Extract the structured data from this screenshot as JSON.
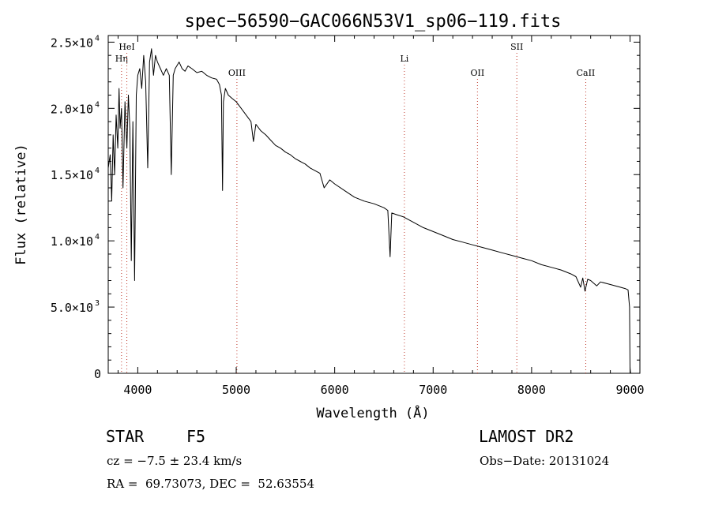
{
  "chart_data": {
    "type": "line",
    "title": "spec−56590−GAC066N53V1_sp06−119.fits",
    "xlabel": "Wavelength (Å)",
    "ylabel": "Flux (relative)",
    "xlim": [
      3700,
      9100
    ],
    "ylim": [
      0,
      25500
    ],
    "x_ticks": [
      4000,
      5000,
      6000,
      7000,
      8000,
      9000
    ],
    "x_tick_labels": [
      "4000",
      "5000",
      "6000",
      "7000",
      "8000",
      "9000"
    ],
    "y_ticks": [
      0,
      5000,
      10000,
      15000,
      20000,
      25000
    ],
    "y_tick_labels": [
      "0",
      "5.0×10",
      "1.0×10",
      "1.5×10",
      "2.0×10",
      "2.5×10"
    ],
    "y_tick_exponents": [
      "",
      "3",
      "4",
      "4",
      "4",
      "4"
    ],
    "series": [
      {
        "name": "spectrum",
        "x": [
          3700,
          3720,
          3735,
          3750,
          3765,
          3780,
          3797,
          3810,
          3820,
          3835,
          3850,
          3870,
          3889,
          3905,
          3920,
          3934,
          3950,
          3968,
          3985,
          4000,
          4020,
          4040,
          4060,
          4080,
          4101,
          4120,
          4140,
          4160,
          4180,
          4200,
          4230,
          4260,
          4290,
          4320,
          4340,
          4360,
          4380,
          4420,
          4450,
          4480,
          4510,
          4550,
          4600,
          4650,
          4700,
          4750,
          4800,
          4830,
          4850,
          4861,
          4870,
          4890,
          4920,
          4950,
          5000,
          5050,
          5100,
          5150,
          5175,
          5200,
          5250,
          5300,
          5350,
          5400,
          5450,
          5500,
          5550,
          5600,
          5650,
          5700,
          5750,
          5800,
          5850,
          5893,
          5950,
          6000,
          6100,
          6200,
          6300,
          6400,
          6500,
          6540,
          6563,
          6580,
          6620,
          6700,
          6800,
          6900,
          7000,
          7100,
          7200,
          7300,
          7400,
          7500,
          7600,
          7700,
          7800,
          7900,
          8000,
          8100,
          8200,
          8300,
          8400,
          8450,
          8498,
          8520,
          8542,
          8570,
          8600,
          8662,
          8700,
          8800,
          8900,
          8950,
          8980,
          8995,
          9000,
          9005
        ],
        "y": [
          15500,
          16500,
          13000,
          18000,
          15000,
          19500,
          17000,
          21500,
          18500,
          20000,
          14000,
          20500,
          17000,
          21000,
          18500,
          8500,
          19000,
          7000,
          21000,
          22500,
          23000,
          21500,
          24000,
          22000,
          15500,
          23500,
          24500,
          22500,
          24000,
          23500,
          23000,
          22500,
          23000,
          22500,
          15000,
          22500,
          23000,
          23500,
          23000,
          22800,
          23200,
          23000,
          22700,
          22800,
          22500,
          22300,
          22200,
          21800,
          21000,
          13800,
          20500,
          21500,
          21000,
          20800,
          20500,
          20000,
          19500,
          19000,
          17500,
          18800,
          18300,
          18000,
          17600,
          17200,
          17000,
          16700,
          16500,
          16200,
          16000,
          15800,
          15500,
          15300,
          15100,
          14000,
          14600,
          14300,
          13800,
          13300,
          13000,
          12800,
          12500,
          12300,
          8800,
          12100,
          12000,
          11800,
          11400,
          11000,
          10700,
          10400,
          10100,
          9900,
          9700,
          9500,
          9300,
          9100,
          8900,
          8700,
          8500,
          8200,
          8000,
          7800,
          7500,
          7300,
          6500,
          7200,
          6200,
          7100,
          7000,
          6600,
          6900,
          6700,
          6500,
          6400,
          6300,
          5000,
          400,
          0
        ]
      }
    ],
    "line_annotations": [
      {
        "label": "Hη",
        "wavelength": 3835,
        "level": 2
      },
      {
        "label": "HeI",
        "wavelength": 3889,
        "level": 1
      },
      {
        "label": "OIII",
        "wavelength": 5007,
        "level": 3
      },
      {
        "label": "Li",
        "wavelength": 6708,
        "level": 2
      },
      {
        "label": "OII",
        "wavelength": 7450,
        "level": 3
      },
      {
        "label": "SII",
        "wavelength": 7850,
        "level": 1
      },
      {
        "label": "CaII",
        "wavelength": 8550,
        "level": 3
      }
    ]
  },
  "info": {
    "object_type": "STAR",
    "subclass": "F5",
    "survey": "LAMOST DR2",
    "cz": "cz = −7.5 ± 23.4 km/s",
    "obs_date": "Obs−Date: 20131024",
    "coords": "RA =  69.73073, DEC =  52.63554"
  }
}
